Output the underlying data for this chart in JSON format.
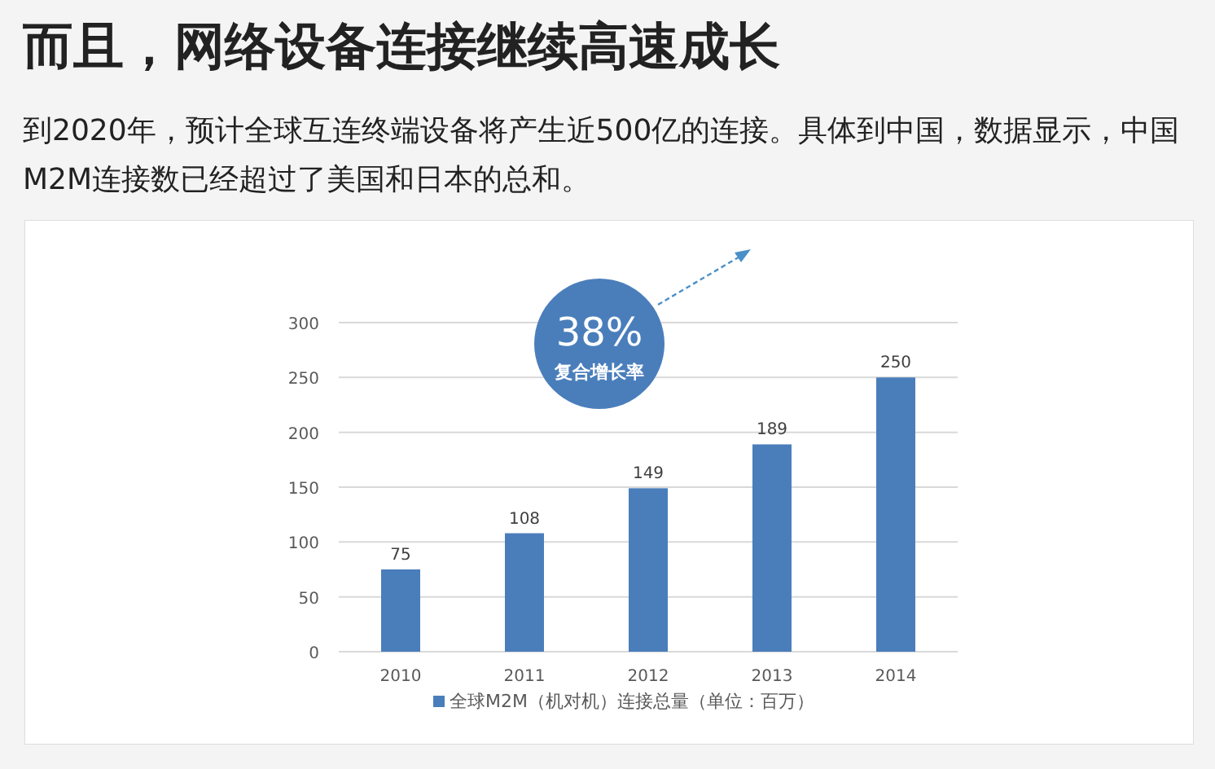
{
  "chart_data": {
    "type": "bar",
    "title": "而且，网络设备连接继续高速成长",
    "subtitle": "到2020年，预计全球互连终端设备将产生近500亿的连接。具体到中国，数据显示，中国M2M连接数已经超过了美国和日本的总和。",
    "categories": [
      "2010",
      "2011",
      "2012",
      "2013",
      "2014"
    ],
    "series": [
      {
        "name": "全球M2M（机对机）连接总量（单位：百万）",
        "color": "#4a7ebb",
        "values": [
          75,
          108,
          149,
          189,
          250
        ]
      }
    ],
    "ylim": [
      0,
      300
    ],
    "yticks": [
      0,
      50,
      100,
      150,
      200,
      250,
      300
    ],
    "grid": "y",
    "legend": "bottom",
    "data_labels": true,
    "annotations": [
      "38%",
      "复合增长率"
    ]
  }
}
